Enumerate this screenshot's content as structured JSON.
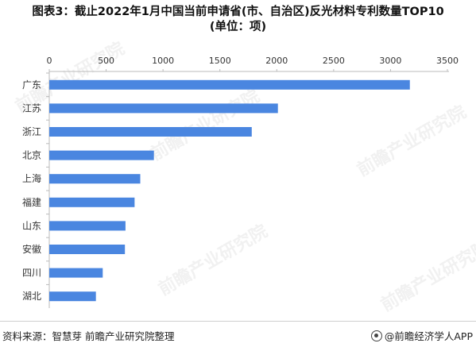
{
  "title": "图表3：截止2022年1月中国当前申请省(市、自治区)反光材料专利数量TOP10",
  "subtitle": "(单位：项)",
  "source": "资料来源：智慧芽 前瞻产业研究院整理",
  "brand": "@前瞻经济学人APP",
  "watermark": "前瞻产业研究院",
  "colors": {
    "bar": "#4a86e0",
    "axis": "#999999",
    "text": "#333333"
  },
  "chart_data": {
    "type": "bar",
    "orientation": "horizontal",
    "categories": [
      "广东",
      "江苏",
      "浙江",
      "北京",
      "上海",
      "福建",
      "山东",
      "安徽",
      "四川",
      "湖北"
    ],
    "values": [
      3170,
      2010,
      1780,
      920,
      800,
      750,
      670,
      665,
      470,
      410
    ],
    "xlim": [
      0,
      3500
    ],
    "xticks": [
      0,
      500,
      1000,
      1500,
      2000,
      2500,
      3000,
      3500
    ],
    "xaxis_position": "top",
    "grid": false,
    "legend": "none"
  }
}
